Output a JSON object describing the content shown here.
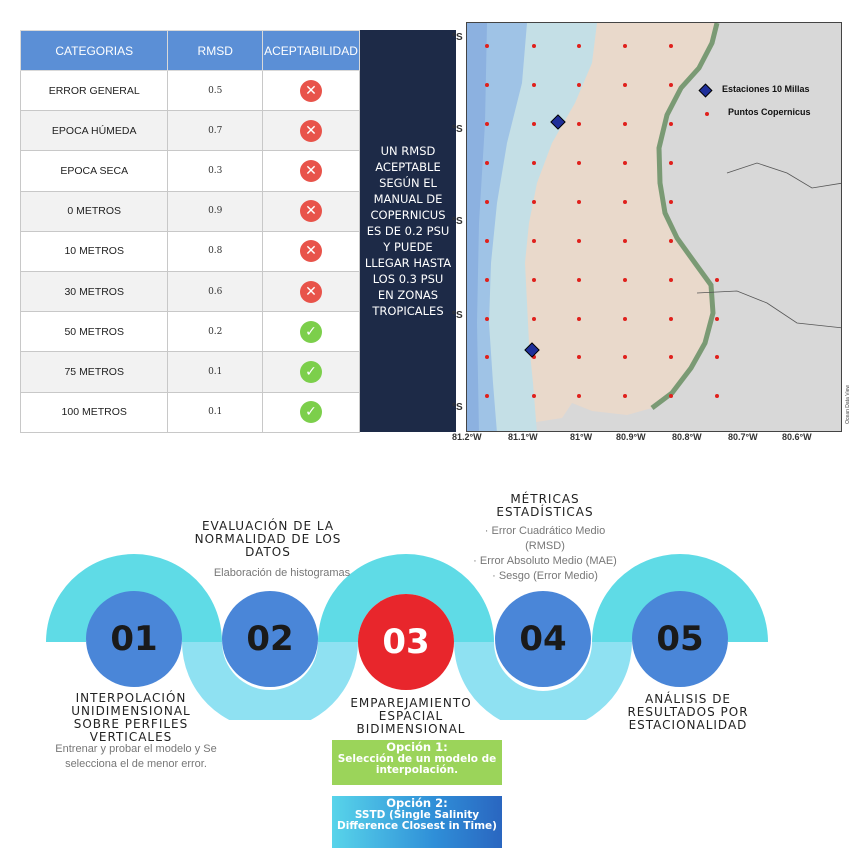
{
  "table": {
    "headers": [
      "CATEGORIAS",
      "RMSD",
      "ACEPTABILIDAD"
    ],
    "rows": [
      {
        "categoria": "ERROR GENERAL",
        "rmsd": "0.5",
        "aceptable": false
      },
      {
        "categoria": "EPOCA HÚMEDA",
        "rmsd": "0.7",
        "aceptable": false
      },
      {
        "categoria": "EPOCA SECA",
        "rmsd": "0.3",
        "aceptable": false
      },
      {
        "categoria": "0 METROS",
        "rmsd": "0.9",
        "aceptable": false
      },
      {
        "categoria": "10 METROS",
        "rmsd": "0.8",
        "aceptable": false
      },
      {
        "categoria": "30 METROS",
        "rmsd": "0.6",
        "aceptable": false
      },
      {
        "categoria": "50 METROS",
        "rmsd": "0.2",
        "aceptable": true
      },
      {
        "categoria": "75 METROS",
        "rmsd": "0.1",
        "aceptable": true
      },
      {
        "categoria": "100 METROS",
        "rmsd": "0.1",
        "aceptable": true
      }
    ],
    "icons": {
      "rejected": "x-circle-icon",
      "accepted": "check-circle-icon"
    }
  },
  "note": {
    "text": "UN RMSD ACEPTABLE SEGÚN EL MANUAL DE COPERNICUS ES DE 0.2 PSU Y PUEDE LLEGAR HASTA LOS 0.3 PSU EN ZONAS TROPICALES"
  },
  "map": {
    "legend": {
      "stations": "Estaciones 10 Millas",
      "points": "Puntos Copernicus"
    },
    "lon_labels": [
      "81.2°W",
      "81.1°W",
      "81°W",
      "80.9°W",
      "80.8°W",
      "80.7°W",
      "80.6°W"
    ],
    "lat_labels": [
      "°S",
      "°S",
      "°S",
      "°S",
      "°S"
    ],
    "credit": "Ocean Data View",
    "colors": {
      "land": "#d8d8d8",
      "ocean_deep": "#8fb4e0",
      "ocean_mid": "#b9d5e4",
      "coast": "#e9d9cb",
      "shore": "#7a9a74",
      "point": "#e0201c",
      "station": "#1f2f9a"
    }
  },
  "process": {
    "steps": [
      {
        "num": "01",
        "title": "INTERPOLACIÓN UNIDIMENSIONAL SOBRE PERFILES VERTICALES",
        "desc": "Entrenar y probar el modelo y Se selecciona el de menor error."
      },
      {
        "num": "02",
        "title": "EVALUACIÓN DE LA NORMALIDAD DE LOS DATOS",
        "desc": "Elaboración de histogramas"
      },
      {
        "num": "03",
        "title": "EMPAREJAMIENTO ESPACIAL BIDIMENSIONAL",
        "desc": ""
      },
      {
        "num": "04",
        "title": "MÉTRICAS ESTADÍSTICAS",
        "desc": ""
      },
      {
        "num": "05",
        "title": "ANÁLISIS DE RESULTADOS POR ESTACIONALIDAD",
        "desc": ""
      }
    ],
    "metrics": [
      "Error Cuadrático Medio (RMSD)",
      "Error Absoluto Medio (MAE)",
      "Sesgo (Error Medio)"
    ],
    "options": [
      {
        "label": "Opción 1:",
        "text": "Selección de un modelo de interpolación."
      },
      {
        "label": "Opción 2:",
        "text": "SSTD (Single Salinity Difference Closest in Time)"
      }
    ],
    "colors": {
      "cyan": "#5fdbe6",
      "blue_circle": "#4a86d8",
      "red_circle": "#e8262c",
      "green_box": "#9bd45a",
      "blue_box": "#2f8fd8"
    }
  }
}
